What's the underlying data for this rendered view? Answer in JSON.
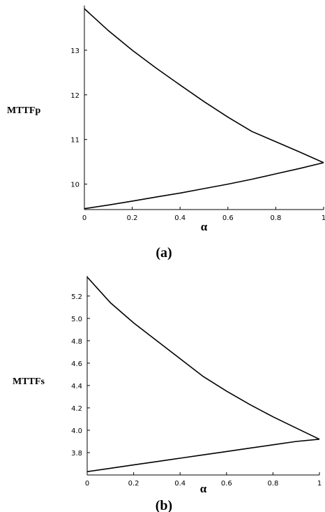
{
  "chart_data": [
    {
      "type": "line",
      "caption": "(a)",
      "xlabel": "α",
      "ylabel": "MTTFp",
      "xlim": [
        0,
        1
      ],
      "ylim": [
        9.43,
        14.0
      ],
      "x_ticks": [
        0,
        0.2,
        0.4,
        0.6,
        0.8,
        1
      ],
      "x_tick_labels": [
        "0",
        "0.2",
        "0.4",
        "0.6",
        "0.8",
        "1"
      ],
      "y_ticks": [
        10,
        11,
        12,
        13
      ],
      "y_tick_labels": [
        "10",
        "11",
        "12",
        "13"
      ],
      "grid": false,
      "series": [
        {
          "x": [
            0,
            0.1,
            0.2,
            0.3,
            0.4,
            0.5,
            0.6,
            0.7,
            0.8,
            0.9,
            1.0
          ],
          "values": [
            13.93,
            13.44,
            13.0,
            12.6,
            12.22,
            11.85,
            11.5,
            11.18,
            10.95,
            10.72,
            10.48
          ]
        },
        {
          "x": [
            0,
            0.1,
            0.2,
            0.3,
            0.4,
            0.5,
            0.6,
            0.7,
            0.8,
            0.9,
            1.0
          ],
          "values": [
            9.45,
            9.53,
            9.62,
            9.71,
            9.8,
            9.9,
            10.0,
            10.11,
            10.23,
            10.35,
            10.48
          ]
        }
      ]
    },
    {
      "type": "line",
      "caption": "(b)",
      "xlabel": "α",
      "ylabel": "MTTFs",
      "xlim": [
        0,
        1
      ],
      "ylim": [
        3.6,
        5.38
      ],
      "x_ticks": [
        0,
        0.2,
        0.4,
        0.6,
        0.8,
        1
      ],
      "x_tick_labels": [
        "0",
        "0.2",
        "0.4",
        "0.6",
        "0.8",
        "1"
      ],
      "y_ticks": [
        3.8,
        4.0,
        4.2,
        4.4,
        4.6,
        4.8,
        5.0,
        5.2
      ],
      "y_tick_labels": [
        "3.8",
        "4.0",
        "4.2",
        "4.4",
        "4.6",
        "4.8",
        "5.0",
        "5.2"
      ],
      "grid": false,
      "series": [
        {
          "x": [
            0,
            0.1,
            0.2,
            0.3,
            0.4,
            0.5,
            0.6,
            0.7,
            0.8,
            0.9,
            1.0
          ],
          "values": [
            5.37,
            5.14,
            4.96,
            4.8,
            4.64,
            4.48,
            4.35,
            4.23,
            4.12,
            4.02,
            3.92
          ]
        },
        {
          "x": [
            0,
            0.1,
            0.2,
            0.3,
            0.4,
            0.5,
            0.6,
            0.7,
            0.8,
            0.9,
            1.0
          ],
          "values": [
            3.63,
            3.66,
            3.69,
            3.72,
            3.75,
            3.78,
            3.81,
            3.84,
            3.87,
            3.9,
            3.92
          ]
        }
      ]
    }
  ]
}
